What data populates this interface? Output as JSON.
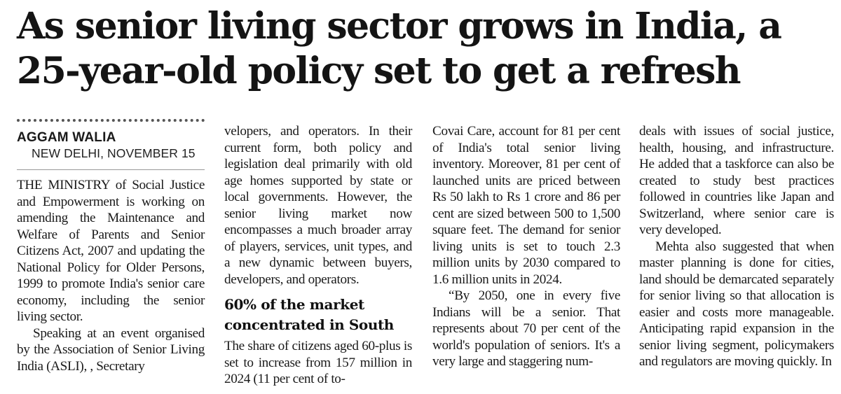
{
  "headline": {
    "line1": "As senior living sector grows in India, a",
    "line2": "25-year-old policy set to get a refresh"
  },
  "byline": {
    "author": "AGGAM WALIA",
    "dateline": "NEW DELHI, NOVEMBER 15"
  },
  "column1": {
    "p1": "THE MINISTRY of Social Justice and Empowerment is working on amending the Maintenance and Welfare of Parents and Senior Citizens Act, 2007 and updating the National Policy for Older Persons, 1999 to promote India's senior care economy, including the senior living sector.",
    "p2": "Speaking at an event organised by the Association of Senior Living India (ASLI), , Secretary"
  },
  "column2": {
    "p1": "velopers, and operators. In their current form, both policy and legislation deal primarily with old age homes supported by state or local governments. However, the senior living market now encompasses a much broader array of players, services, unit types, and a new dynamic between buyers, developers, and operators.",
    "subhead": "60% of the market concentrated in South",
    "p2": "The share of citizens aged 60-plus is set to increase from 157 million in 2024 (11 per cent of to-"
  },
  "column3": {
    "p1": "Covai Care, account for 81 per cent of India's total senior living inventory. Moreover, 81 per cent of launched units are priced between Rs 50 lakh to Rs 1 crore and 86 per cent are sized between 500 to 1,500 square feet. The demand for senior living units is set to touch 2.3 million units by 2030 compared to 1.6 million units in 2024.",
    "p2": "“By 2050, one in every five Indians will be a senior. That represents about 70 per cent of the world's population of seniors. It's a very large and staggering num-"
  },
  "column4": {
    "p1": "deals with issues of social justice, health, housing, and infrastructure. He added that a taskforce can also be created to study best practices followed in countries like Japan and Switzerland, where senior care is very developed.",
    "p2": "Mehta also suggested that when master planning is done for cities, land should be demarcated separately for senior living so that allocation is easier and costs more manageable. Anticipating rapid expansion in the senior living segment, policymakers and regulators are moving quickly. In"
  }
}
